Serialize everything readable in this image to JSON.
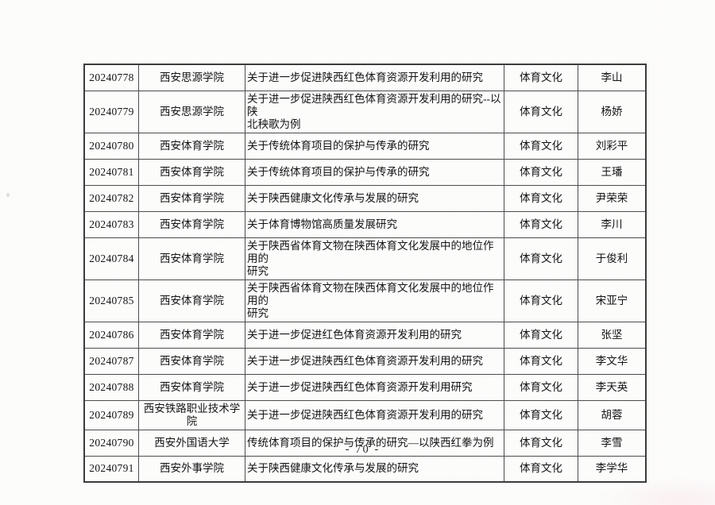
{
  "page": {
    "number_label": "- 70 -"
  },
  "table": {
    "category_note": "all rows share category 体育文化 (sports culture)",
    "rows": [
      {
        "id": "20240778",
        "institution": "西安思源学院",
        "title": "关于进一步促进陕西红色体育资源开发利用的研究",
        "category": "体育文化",
        "leader": "李山"
      },
      {
        "id": "20240779",
        "institution": "西安思源学院",
        "title": "关于进一步促进陕西红色体育资源开发利用的研究--以陕\n北秧歌为例",
        "category": "体育文化",
        "leader": "杨娇"
      },
      {
        "id": "20240780",
        "institution": "西安体育学院",
        "title": "关于传统体育项目的保护与传承的研究",
        "category": "体育文化",
        "leader": "刘彩平"
      },
      {
        "id": "20240781",
        "institution": "西安体育学院",
        "title": "关于传统体育项目的保护与传承的研究",
        "category": "体育文化",
        "leader": "王璠"
      },
      {
        "id": "20240782",
        "institution": "西安体育学院",
        "title": "关于陕西健康文化传承与发展的研究",
        "category": "体育文化",
        "leader": "尹荣荣"
      },
      {
        "id": "20240783",
        "institution": "西安体育学院",
        "title": "关于体育博物馆高质量发展研究",
        "category": "体育文化",
        "leader": "李川"
      },
      {
        "id": "20240784",
        "institution": "西安体育学院",
        "title": "关于陕西省体育文物在陕西体育文化发展中的地位作用的\n研究",
        "category": "体育文化",
        "leader": "于俊利"
      },
      {
        "id": "20240785",
        "institution": "西安体育学院",
        "title": "关于陕西省体育文物在陕西体育文化发展中的地位作用的\n研究",
        "category": "体育文化",
        "leader": "宋亚宁"
      },
      {
        "id": "20240786",
        "institution": "西安体育学院",
        "title": "关于进一步促进红色体育资源开发利用的研究",
        "category": "体育文化",
        "leader": "张坚"
      },
      {
        "id": "20240787",
        "institution": "西安体育学院",
        "title": "关于进一步促进陕西红色体育资源开发利用的研究",
        "category": "体育文化",
        "leader": "李文华"
      },
      {
        "id": "20240788",
        "institution": "西安体育学院",
        "title": "关于进一步促进陕西红色体育资源开发利用研究",
        "category": "体育文化",
        "leader": "李天英"
      },
      {
        "id": "20240789",
        "institution": "西安铁路职业技术学院",
        "title": "关于进一步促进陕西红色体育资源开发利用的研究",
        "category": "体育文化",
        "leader": "胡蓉"
      },
      {
        "id": "20240790",
        "institution": "西安外国语大学",
        "title": "传统体育项目的保护与传承的研究—以陕西红拳为例",
        "category": "体育文化",
        "leader": "李雪"
      },
      {
        "id": "20240791",
        "institution": "西安外事学院",
        "title": "关于陕西健康文化传承与发展的研究",
        "category": "体育文化",
        "leader": "李学华"
      }
    ]
  }
}
